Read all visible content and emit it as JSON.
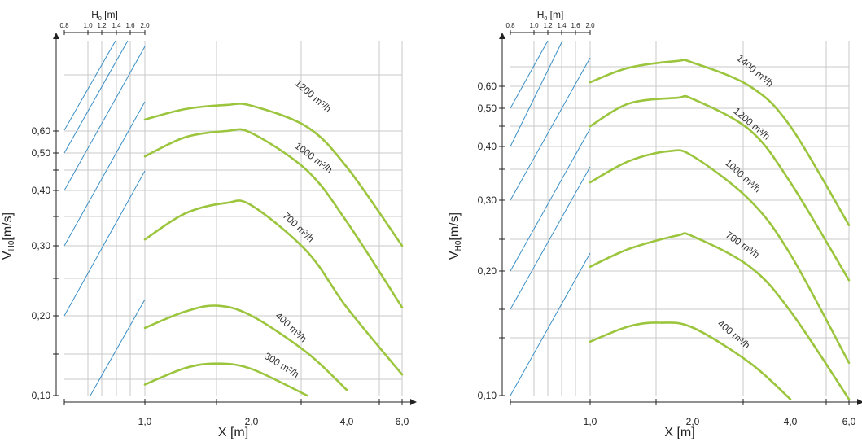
{
  "chart_data": [
    {
      "type": "line",
      "h_axis": {
        "label_main": "H",
        "label_sub": "o",
        "label_unit": "[m]",
        "ticks": [
          "0,8",
          "1,0",
          "1,2",
          "1,4",
          "1,6",
          "2,0"
        ]
      },
      "ylabel": {
        "main": "V",
        "sub": "H0",
        "unit": "[m/s]"
      },
      "xlabel": "X [m]",
      "y_tick_labels": [
        "0,10",
        "0,20",
        "0,30",
        "0,40",
        "0,50",
        "0,60"
      ],
      "x_tick_labels": [
        "1,0",
        "2,0",
        "4,0",
        "6,0"
      ],
      "ylim": [
        0.1,
        1.0
      ],
      "xlim": [
        0.3,
        6.0
      ],
      "scale": "log-log",
      "grid": true,
      "colors": {
        "flow_curve": "#9bc53d",
        "height_line": "#3a8fc6",
        "grid": "#c8c8c8"
      },
      "series": [
        {
          "name": "1200 m³/h",
          "points": [
            [
              1.0,
              0.66
            ],
            [
              1.3,
              0.72
            ],
            [
              1.7,
              0.745
            ],
            [
              2.0,
              0.74
            ],
            [
              3.0,
              0.62
            ],
            [
              4.0,
              0.46
            ],
            [
              6.0,
              0.3
            ]
          ]
        },
        {
          "name": "1000 m³/h",
          "points": [
            [
              1.0,
              0.49
            ],
            [
              1.3,
              0.57
            ],
            [
              1.7,
              0.6
            ],
            [
              2.0,
              0.59
            ],
            [
              3.0,
              0.45
            ],
            [
              4.0,
              0.34
            ],
            [
              6.0,
              0.21
            ]
          ]
        },
        {
          "name": "700 m³/h",
          "points": [
            [
              1.0,
              0.31
            ],
            [
              1.3,
              0.355
            ],
            [
              1.7,
              0.375
            ],
            [
              2.0,
              0.37
            ],
            [
              3.0,
              0.29
            ],
            [
              4.0,
              0.21
            ],
            [
              6.0,
              0.12
            ]
          ]
        },
        {
          "name": "400 m³/h",
          "points": [
            [
              1.0,
              0.18
            ],
            [
              1.3,
              0.205
            ],
            [
              1.6,
              0.212
            ],
            [
              2.0,
              0.2
            ],
            [
              3.0,
              0.145
            ],
            [
              4.0,
              0.105
            ]
          ]
        },
        {
          "name": "300 m³/h",
          "points": [
            [
              1.0,
              0.11
            ],
            [
              1.3,
              0.127
            ],
            [
              1.6,
              0.132
            ],
            [
              2.0,
              0.126
            ],
            [
              3.0,
              0.1
            ]
          ]
        }
      ]
    },
    {
      "type": "line",
      "h_axis": {
        "label_main": "H",
        "label_sub": "o",
        "label_unit": "[m]",
        "ticks": [
          "0,8",
          "1,0",
          "1,2",
          "1,4",
          "1,6",
          "2,0"
        ]
      },
      "ylabel": {
        "main": "V",
        "sub": "H0",
        "unit": "[m/s]"
      },
      "xlabel": "X [m]",
      "y_tick_labels": [
        "0,10",
        "0,20",
        "0,30",
        "0,40",
        "0,50",
        "0,60"
      ],
      "x_tick_labels": [
        "1,0",
        "2,0",
        "4,0",
        "6,0"
      ],
      "ylim": [
        0.1,
        0.8
      ],
      "xlim": [
        0.3,
        6.0
      ],
      "scale": "log-log",
      "grid": true,
      "colors": {
        "flow_curve": "#9bc53d",
        "height_line": "#3a8fc6",
        "grid": "#c8c8c8"
      },
      "series": [
        {
          "name": "1400 m³/h",
          "points": [
            [
              1.0,
              0.62
            ],
            [
              1.3,
              0.7
            ],
            [
              1.8,
              0.74
            ],
            [
              2.0,
              0.73
            ],
            [
              3.0,
              0.6
            ],
            [
              4.0,
              0.45
            ],
            [
              6.0,
              0.26
            ]
          ]
        },
        {
          "name": "1200 m³/h",
          "points": [
            [
              1.0,
              0.45
            ],
            [
              1.3,
              0.52
            ],
            [
              1.8,
              0.545
            ],
            [
              2.0,
              0.54
            ],
            [
              3.0,
              0.44
            ],
            [
              4.0,
              0.33
            ],
            [
              6.0,
              0.19
            ]
          ]
        },
        {
          "name": "1000 m³/h",
          "points": [
            [
              1.0,
              0.33
            ],
            [
              1.3,
              0.37
            ],
            [
              1.7,
              0.39
            ],
            [
              2.0,
              0.38
            ],
            [
              3.0,
              0.3
            ],
            [
              4.0,
              0.22
            ],
            [
              6.0,
              0.12
            ]
          ]
        },
        {
          "name": "700 m³/h",
          "points": [
            [
              1.0,
              0.205
            ],
            [
              1.3,
              0.227
            ],
            [
              1.8,
              0.245
            ],
            [
              2.0,
              0.244
            ],
            [
              3.0,
              0.205
            ],
            [
              4.0,
              0.16
            ],
            [
              6.0,
              0.098
            ]
          ]
        },
        {
          "name": "400 m³/h",
          "points": [
            [
              1.0,
              0.135
            ],
            [
              1.3,
              0.147
            ],
            [
              1.6,
              0.15
            ],
            [
              2.0,
              0.146
            ],
            [
              3.0,
              0.12
            ],
            [
              4.0,
              0.098
            ]
          ]
        }
      ]
    }
  ]
}
